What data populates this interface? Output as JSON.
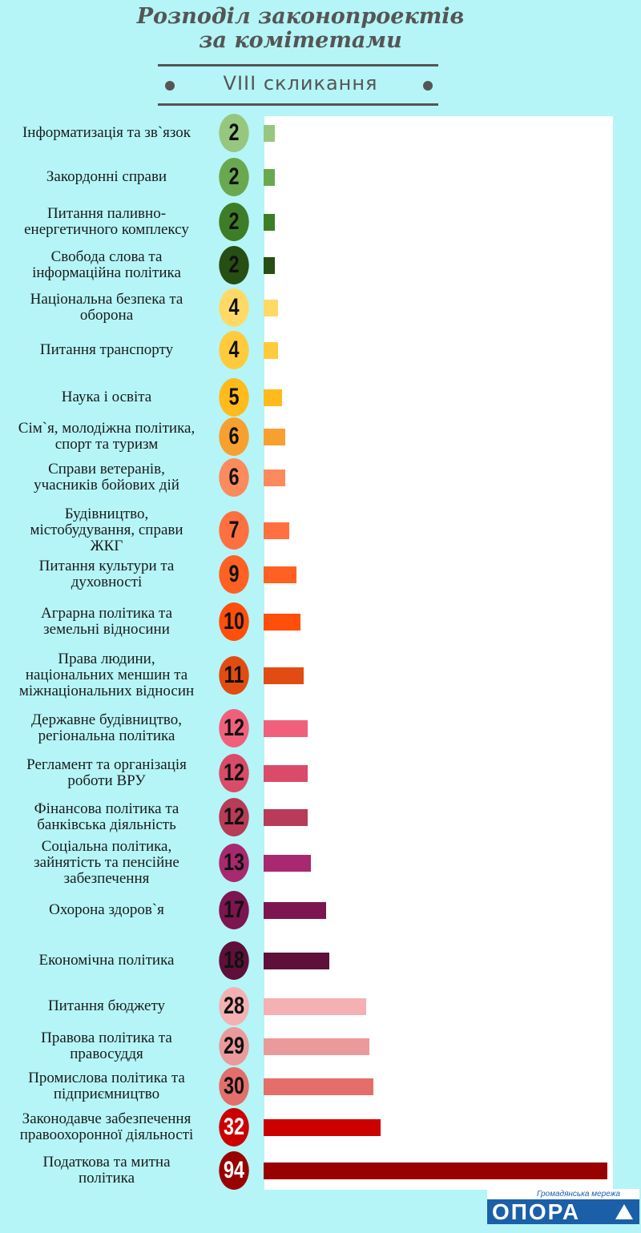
{
  "header": {
    "title": "Розподіл законопроектів за комітетами",
    "subtitle": "VIII скликання"
  },
  "chart_data": {
    "type": "bar",
    "orientation": "horizontal",
    "title": "Розподіл законопроектів за комітетами",
    "subtitle": "VIII скликання",
    "xlim": [
      0,
      94
    ],
    "grid": false,
    "categories": [
      "Інформатизація та зв`язок",
      "Закордонні справи",
      "Питання паливно-енергетичного комплексу",
      "Свобода слова та інформаційна політика",
      "Національна безпека та оборона",
      "Питання транспорту",
      "Наука і освіта",
      "Сім`я, молодіжна політика, спорт та туризм",
      "Справи ветеранів, учасників бойових дій",
      "Будівництво, містобудування, справи ЖКГ",
      "Питання культури та духовності",
      "Аграрна політика та земельні відносини",
      "Права людини, національних меншин та міжнаціональних відносин",
      "Державне будівництво, регіональна політика",
      "Регламент та організація роботи ВРУ",
      "Фінансова політика та банківська діяльність",
      "Соціальна політика, зайнятість та пенсійне забезпечення",
      "Охорона здоров`я",
      "Економічна політика",
      "Питання бюджету",
      "Правова політика та правосуддя",
      "Промислова політика та підприємництво",
      "Законодавче забезпечення правоохоронної діяльності",
      "Податкова та митна політика"
    ],
    "values": [
      2,
      2,
      2,
      2,
      4,
      4,
      5,
      6,
      6,
      7,
      9,
      10,
      11,
      12,
      12,
      12,
      13,
      17,
      18,
      28,
      29,
      30,
      32,
      94
    ],
    "colors": [
      "#97c77f",
      "#6aa84f",
      "#3e7d27",
      "#274e13",
      "#ffd966",
      "#ffcb3d",
      "#ffba1c",
      "#f7a030",
      "#fb8a5c",
      "#ff7040",
      "#ff6122",
      "#ff4f0a",
      "#e04c12",
      "#f0607c",
      "#d94b69",
      "#b83b58",
      "#a8296f",
      "#7d1550",
      "#5e0f3a",
      "#f4b0b3",
      "#eb9a9b",
      "#e36e6b",
      "#cc0000",
      "#990000"
    ],
    "label_text_colors": [
      "#111111",
      "#111111",
      "#111111",
      "#111111",
      "#111111",
      "#111111",
      "#111111",
      "#111111",
      "#111111",
      "#111111",
      "#111111",
      "#111111",
      "#111111",
      "#111111",
      "#111111",
      "#111111",
      "#111111",
      "#111111",
      "#111111",
      "#111111",
      "#111111",
      "#111111",
      "#ffffff",
      "#ffffff"
    ]
  },
  "logo": {
    "tagline": "Громадянська мережа",
    "name": "ОПОРА"
  }
}
